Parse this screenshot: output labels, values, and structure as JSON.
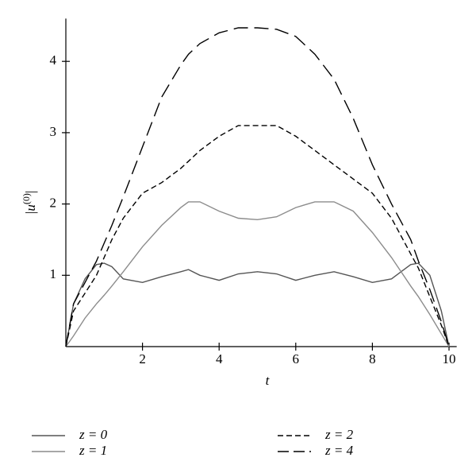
{
  "chart_data": {
    "type": "line",
    "xlabel": "t",
    "ylabel": "|u",
    "ylabel_sup": "(0)",
    "ylabel_end": "|",
    "x": [
      0,
      0.2,
      0.5,
      0.8,
      1,
      1.2,
      1.5,
      2,
      2.5,
      3,
      3.2,
      3.5,
      4,
      4.5,
      5,
      5.5,
      6,
      6.5,
      7,
      7.5,
      8,
      8.5,
      9,
      9.2,
      9.5,
      9.8,
      10
    ],
    "series": [
      {
        "name": "z = 0",
        "color": "#555555",
        "dash": "none",
        "values": [
          0,
          0.6,
          0.95,
          1.15,
          1.17,
          1.12,
          0.95,
          0.9,
          0.98,
          1.05,
          1.08,
          1.0,
          0.93,
          1.02,
          1.05,
          1.02,
          0.93,
          1.0,
          1.05,
          0.98,
          0.9,
          0.95,
          1.15,
          1.17,
          1.0,
          0.5,
          0
        ]
      },
      {
        "name": "z = 1",
        "color": "#8c8c8c",
        "dash": "none",
        "values": [
          0,
          0.15,
          0.4,
          0.6,
          0.72,
          0.85,
          1.05,
          1.4,
          1.7,
          1.95,
          2.03,
          2.03,
          1.9,
          1.8,
          1.78,
          1.82,
          1.95,
          2.03,
          2.03,
          1.9,
          1.6,
          1.25,
          0.85,
          0.7,
          0.45,
          0.18,
          0
        ]
      },
      {
        "name": "z = 2",
        "color": "#000000",
        "dash": "7,4",
        "values": [
          0,
          0.5,
          0.75,
          1.0,
          1.25,
          1.5,
          1.8,
          2.15,
          2.3,
          2.5,
          2.6,
          2.75,
          2.95,
          3.1,
          3.1,
          3.1,
          2.95,
          2.75,
          2.55,
          2.35,
          2.15,
          1.8,
          1.3,
          1.1,
          0.7,
          0.3,
          0
        ]
      },
      {
        "name": "z = 4",
        "color": "#000000",
        "dash": "18,8",
        "values": [
          0,
          0.6,
          0.9,
          1.2,
          1.45,
          1.7,
          2.1,
          2.8,
          3.5,
          3.95,
          4.1,
          4.25,
          4.4,
          4.47,
          4.47,
          4.45,
          4.35,
          4.1,
          3.75,
          3.2,
          2.55,
          2.0,
          1.5,
          1.2,
          0.8,
          0.35,
          0
        ]
      }
    ],
    "xlim": [
      0,
      10.2
    ],
    "xticks": [
      2,
      4,
      6,
      8,
      10
    ],
    "ylim": [
      0,
      4.6
    ],
    "yticks": [
      1,
      2,
      3,
      4
    ],
    "grid": false
  }
}
